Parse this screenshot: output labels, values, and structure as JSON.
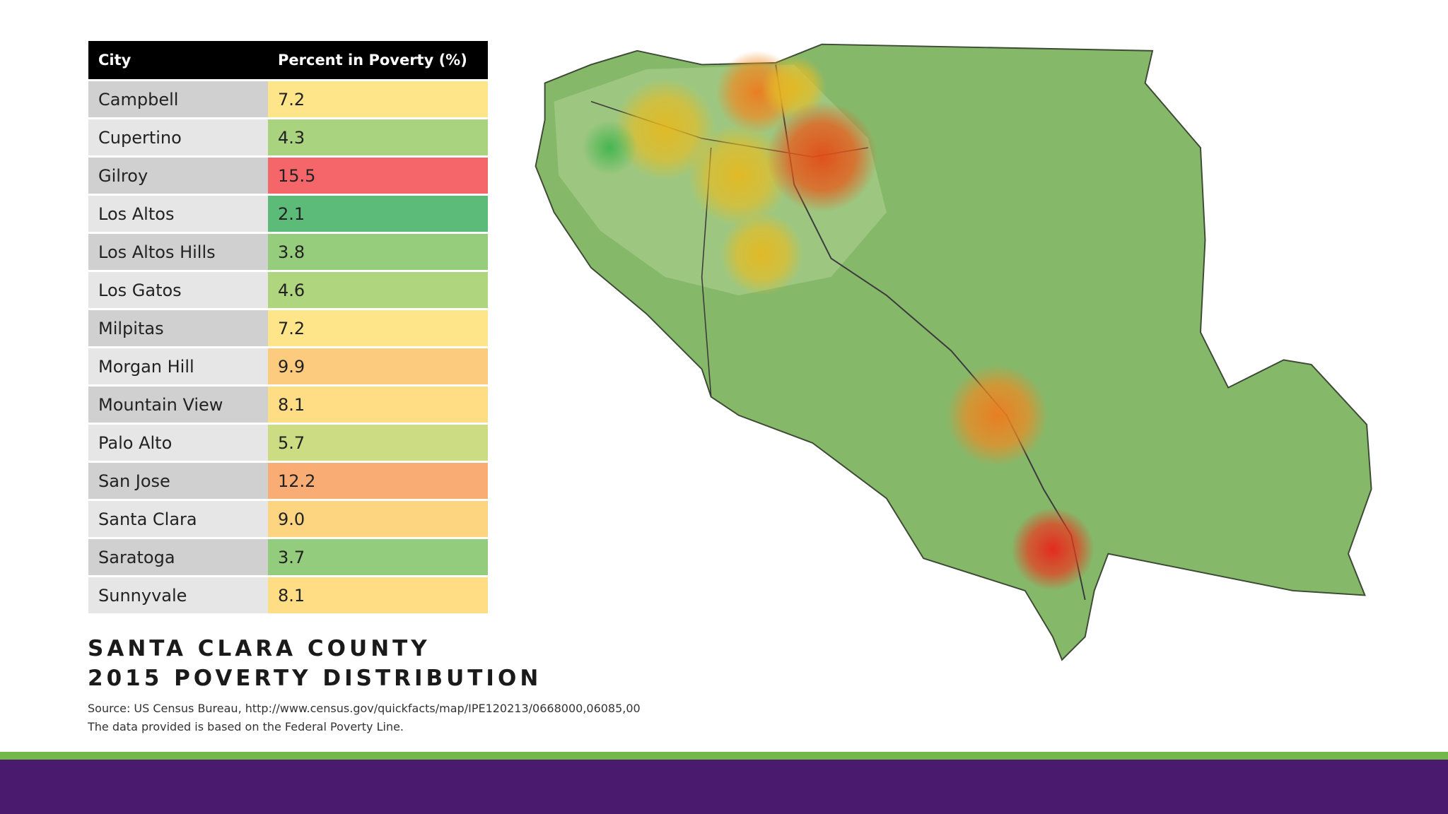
{
  "table": {
    "header": [
      "City",
      "Percent in Poverty (%)"
    ],
    "rows": [
      {
        "city": "Campbell",
        "percent": "7.2",
        "color": "#fee58a"
      },
      {
        "city": "Cupertino",
        "percent": "4.3",
        "color": "#a9d37e"
      },
      {
        "city": "Gilroy",
        "percent": "15.5",
        "color": "#f5666b"
      },
      {
        "city": "Los Altos",
        "percent": "2.1",
        "color": "#5dbb7a"
      },
      {
        "city": "Los Altos Hills",
        "percent": "3.8",
        "color": "#96cd7d"
      },
      {
        "city": "Los Gatos",
        "percent": "4.6",
        "color": "#b0d57f"
      },
      {
        "city": "Milpitas",
        "percent": "7.2",
        "color": "#fee58a"
      },
      {
        "city": "Morgan Hill",
        "percent": "9.9",
        "color": "#fccb7d"
      },
      {
        "city": "Mountain View",
        "percent": "8.1",
        "color": "#fedd84"
      },
      {
        "city": "Palo Alto",
        "percent": "5.7",
        "color": "#cbdc82"
      },
      {
        "city": "San Jose",
        "percent": "12.2",
        "color": "#f9ad75"
      },
      {
        "city": "Santa Clara",
        "percent": "9.0",
        "color": "#fdd480"
      },
      {
        "city": "Saratoga",
        "percent": "3.7",
        "color": "#92cc7c"
      },
      {
        "city": "Sunnyvale",
        "percent": "8.1",
        "color": "#fedd84"
      }
    ]
  },
  "title": [
    "SANTA CLARA COUNTY",
    "2015 POVERTY DISTRIBUTION"
  ],
  "source": [
    "Source: US Census Bureau, http://www.census.gov/quickfacts/map/IPE120213/0668000,06085,00",
    "The data provided is based on the Federal Poverty Line."
  ]
}
